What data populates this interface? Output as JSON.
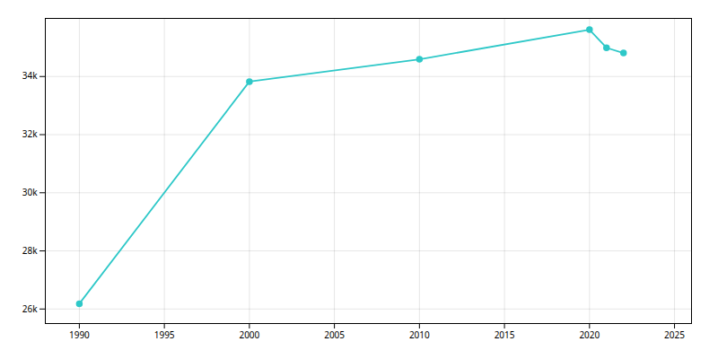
{
  "chart_data": {
    "type": "line",
    "x": [
      1990,
      2000,
      2010,
      2020,
      2021,
      2022
    ],
    "values": [
      26183,
      33826,
      34593,
      35612,
      34989,
      34810
    ],
    "color": "#2ec8c8",
    "marker": "circle",
    "line_style": "solid",
    "xlim": [
      1988,
      2026
    ],
    "ylim": [
      25500,
      36000
    ],
    "xticks": [
      1990,
      1995,
      2000,
      2005,
      2010,
      2015,
      2020,
      2025
    ],
    "yticks": [
      {
        "value": 26000,
        "label": "26k"
      },
      {
        "value": 28000,
        "label": "28k"
      },
      {
        "value": 30000,
        "label": "30k"
      },
      {
        "value": 32000,
        "label": "32k"
      },
      {
        "value": 34000,
        "label": "34k"
      }
    ],
    "grid": true
  }
}
